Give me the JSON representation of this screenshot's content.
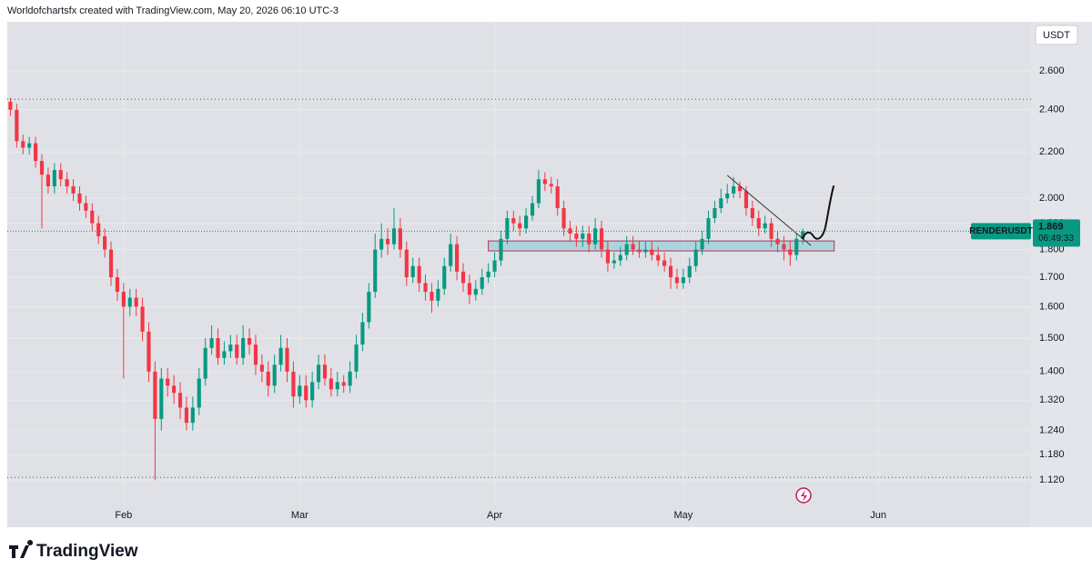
{
  "header": {
    "caption": "Worldofchartsfx created with TradingView.com, May 20, 2026 06:10 UTC-3"
  },
  "footer": {
    "brand": "TradingView"
  },
  "chart_data": {
    "type": "candlestick",
    "currency_button": "USDT",
    "log_scale": true,
    "grid": true,
    "up_color": "#089981",
    "down_color": "#f23645",
    "xlim": [
      -0.5,
      162.3
    ],
    "xticks": [
      {
        "value": 18,
        "label": "Feb"
      },
      {
        "value": 46,
        "label": "Mar"
      },
      {
        "value": 77,
        "label": "Apr"
      },
      {
        "value": 107,
        "label": "May"
      },
      {
        "value": 138,
        "label": "Jun"
      }
    ],
    "ylim": [
      1.075,
      2.855
    ],
    "yticks": [
      {
        "value": 2.6,
        "label": "2.600"
      },
      {
        "value": 2.4,
        "label": "2.400"
      },
      {
        "value": 2.2,
        "label": "2.200"
      },
      {
        "value": 2.0,
        "label": "2.000"
      },
      {
        "value": 1.9,
        "label": "1.900"
      },
      {
        "value": 1.8,
        "label": "1.800"
      },
      {
        "value": 1.7,
        "label": "1.700"
      },
      {
        "value": 1.6,
        "label": "1.600"
      },
      {
        "value": 1.5,
        "label": "1.500"
      },
      {
        "value": 1.4,
        "label": "1.400"
      },
      {
        "value": 1.32,
        "label": "1.320"
      },
      {
        "value": 1.24,
        "label": "1.240"
      },
      {
        "value": 1.18,
        "label": "1.180"
      },
      {
        "value": 1.12,
        "label": "1.120"
      }
    ],
    "open": [
      2.44,
      2.4,
      2.25,
      2.22,
      2.24,
      2.16,
      2.1,
      2.05,
      2.12,
      2.08,
      2.05,
      2.02,
      1.98,
      1.95,
      1.9,
      1.85,
      1.8,
      1.7,
      1.65,
      1.6,
      1.63,
      1.6,
      1.52,
      1.4,
      1.27,
      1.38,
      1.36,
      1.34,
      1.3,
      1.26,
      1.3,
      1.38,
      1.47,
      1.5,
      1.44,
      1.46,
      1.48,
      1.44,
      1.5,
      1.48,
      1.42,
      1.4,
      1.36,
      1.42,
      1.47,
      1.4,
      1.33,
      1.36,
      1.32,
      1.37,
      1.42,
      1.38,
      1.35,
      1.37,
      1.36,
      1.4,
      1.48,
      1.55,
      1.65,
      1.8,
      1.84,
      1.82,
      1.88,
      1.8,
      1.7,
      1.74,
      1.68,
      1.65,
      1.62,
      1.66,
      1.74,
      1.82,
      1.72,
      1.68,
      1.64,
      1.66,
      1.7,
      1.72,
      1.76,
      1.84,
      1.92,
      1.9,
      1.88,
      1.93,
      1.98,
      2.08,
      2.06,
      2.05,
      1.96,
      1.88,
      1.86,
      1.84,
      1.86,
      1.82,
      1.88,
      1.8,
      1.75,
      1.76,
      1.78,
      1.82,
      1.8,
      1.79,
      1.8,
      1.78,
      1.76,
      1.74,
      1.7,
      1.68,
      1.7,
      1.74,
      1.8,
      1.84,
      1.92,
      1.96,
      2.0,
      2.02,
      2.05,
      2.03,
      1.96,
      1.92,
      1.88,
      1.9,
      1.84,
      1.82,
      1.8,
      1.78,
      1.84
    ],
    "high": [
      2.46,
      2.43,
      2.28,
      2.27,
      2.27,
      2.19,
      2.13,
      2.15,
      2.15,
      2.11,
      2.08,
      2.05,
      2.01,
      1.98,
      1.93,
      1.88,
      1.83,
      1.73,
      1.68,
      1.66,
      1.66,
      1.63,
      1.55,
      1.43,
      1.41,
      1.41,
      1.39,
      1.37,
      1.33,
      1.33,
      1.41,
      1.5,
      1.54,
      1.53,
      1.49,
      1.51,
      1.51,
      1.54,
      1.53,
      1.51,
      1.45,
      1.43,
      1.45,
      1.51,
      1.5,
      1.43,
      1.39,
      1.39,
      1.4,
      1.45,
      1.45,
      1.41,
      1.4,
      1.39,
      1.43,
      1.51,
      1.58,
      1.68,
      1.86,
      1.9,
      1.88,
      1.96,
      1.92,
      1.83,
      1.77,
      1.77,
      1.71,
      1.68,
      1.69,
      1.77,
      1.86,
      1.85,
      1.75,
      1.71,
      1.69,
      1.73,
      1.75,
      1.79,
      1.87,
      1.95,
      1.95,
      1.93,
      1.96,
      2.01,
      2.12,
      2.11,
      2.09,
      2.08,
      1.99,
      1.91,
      1.89,
      1.89,
      1.89,
      1.92,
      1.91,
      1.83,
      1.79,
      1.81,
      1.85,
      1.85,
      1.83,
      1.83,
      1.83,
      1.81,
      1.79,
      1.77,
      1.73,
      1.73,
      1.77,
      1.83,
      1.87,
      1.95,
      1.99,
      2.04,
      2.06,
      2.09,
      2.07,
      2.05,
      1.99,
      1.95,
      1.93,
      1.92,
      1.87,
      1.85,
      1.83,
      1.86,
      1.88
    ],
    "low": [
      2.37,
      2.22,
      2.19,
      2.19,
      2.13,
      1.88,
      2.02,
      2.02,
      2.05,
      2.02,
      1.99,
      1.95,
      1.92,
      1.87,
      1.82,
      1.77,
      1.67,
      1.62,
      1.38,
      1.57,
      1.57,
      1.49,
      1.37,
      1.12,
      1.24,
      1.33,
      1.31,
      1.27,
      1.24,
      1.24,
      1.28,
      1.36,
      1.45,
      1.42,
      1.42,
      1.44,
      1.42,
      1.42,
      1.45,
      1.39,
      1.37,
      1.33,
      1.34,
      1.4,
      1.37,
      1.3,
      1.31,
      1.3,
      1.3,
      1.35,
      1.36,
      1.33,
      1.33,
      1.34,
      1.34,
      1.38,
      1.46,
      1.53,
      1.63,
      1.77,
      1.78,
      1.8,
      1.77,
      1.67,
      1.68,
      1.65,
      1.62,
      1.58,
      1.6,
      1.64,
      1.72,
      1.69,
      1.65,
      1.61,
      1.62,
      1.64,
      1.68,
      1.7,
      1.74,
      1.82,
      1.87,
      1.85,
      1.86,
      1.91,
      1.96,
      2.03,
      2.02,
      1.93,
      1.85,
      1.83,
      1.81,
      1.81,
      1.79,
      1.8,
      1.77,
      1.72,
      1.73,
      1.74,
      1.76,
      1.78,
      1.77,
      1.77,
      1.76,
      1.74,
      1.72,
      1.66,
      1.66,
      1.66,
      1.68,
      1.72,
      1.78,
      1.82,
      1.9,
      1.94,
      1.98,
      2.0,
      2.0,
      1.93,
      1.89,
      1.85,
      1.86,
      1.81,
      1.79,
      1.76,
      1.74,
      1.76,
      1.82
    ],
    "close": [
      2.4,
      2.25,
      2.22,
      2.24,
      2.16,
      2.1,
      2.05,
      2.12,
      2.08,
      2.05,
      2.02,
      1.98,
      1.95,
      1.9,
      1.85,
      1.8,
      1.7,
      1.65,
      1.6,
      1.63,
      1.6,
      1.52,
      1.4,
      1.27,
      1.38,
      1.36,
      1.34,
      1.3,
      1.26,
      1.3,
      1.38,
      1.47,
      1.5,
      1.44,
      1.46,
      1.48,
      1.44,
      1.5,
      1.48,
      1.42,
      1.4,
      1.36,
      1.42,
      1.47,
      1.4,
      1.33,
      1.36,
      1.32,
      1.37,
      1.42,
      1.38,
      1.35,
      1.37,
      1.36,
      1.4,
      1.48,
      1.55,
      1.65,
      1.8,
      1.84,
      1.82,
      1.88,
      1.8,
      1.7,
      1.74,
      1.68,
      1.65,
      1.62,
      1.66,
      1.74,
      1.82,
      1.72,
      1.68,
      1.64,
      1.66,
      1.7,
      1.72,
      1.76,
      1.84,
      1.92,
      1.9,
      1.88,
      1.93,
      1.98,
      2.08,
      2.06,
      2.05,
      1.96,
      1.88,
      1.86,
      1.84,
      1.86,
      1.82,
      1.88,
      1.8,
      1.75,
      1.76,
      1.78,
      1.82,
      1.8,
      1.79,
      1.8,
      1.78,
      1.76,
      1.74,
      1.7,
      1.68,
      1.7,
      1.74,
      1.8,
      1.84,
      1.92,
      1.96,
      2.0,
      2.02,
      2.05,
      2.03,
      1.96,
      1.92,
      1.88,
      1.9,
      1.84,
      1.82,
      1.8,
      1.78,
      1.84,
      1.869
    ],
    "hlines": [
      2.453,
      1.126
    ],
    "zone": {
      "x": [
        76,
        131
      ],
      "y": [
        1.795,
        1.832
      ]
    },
    "trendline": {
      "x": [
        114,
        127.3
      ],
      "y": [
        2.097,
        1.815
      ]
    },
    "price_tag": {
      "symbol": "RENDERUSDT",
      "value": 1.869,
      "label": "1.869",
      "countdown": "06:49:33"
    }
  }
}
